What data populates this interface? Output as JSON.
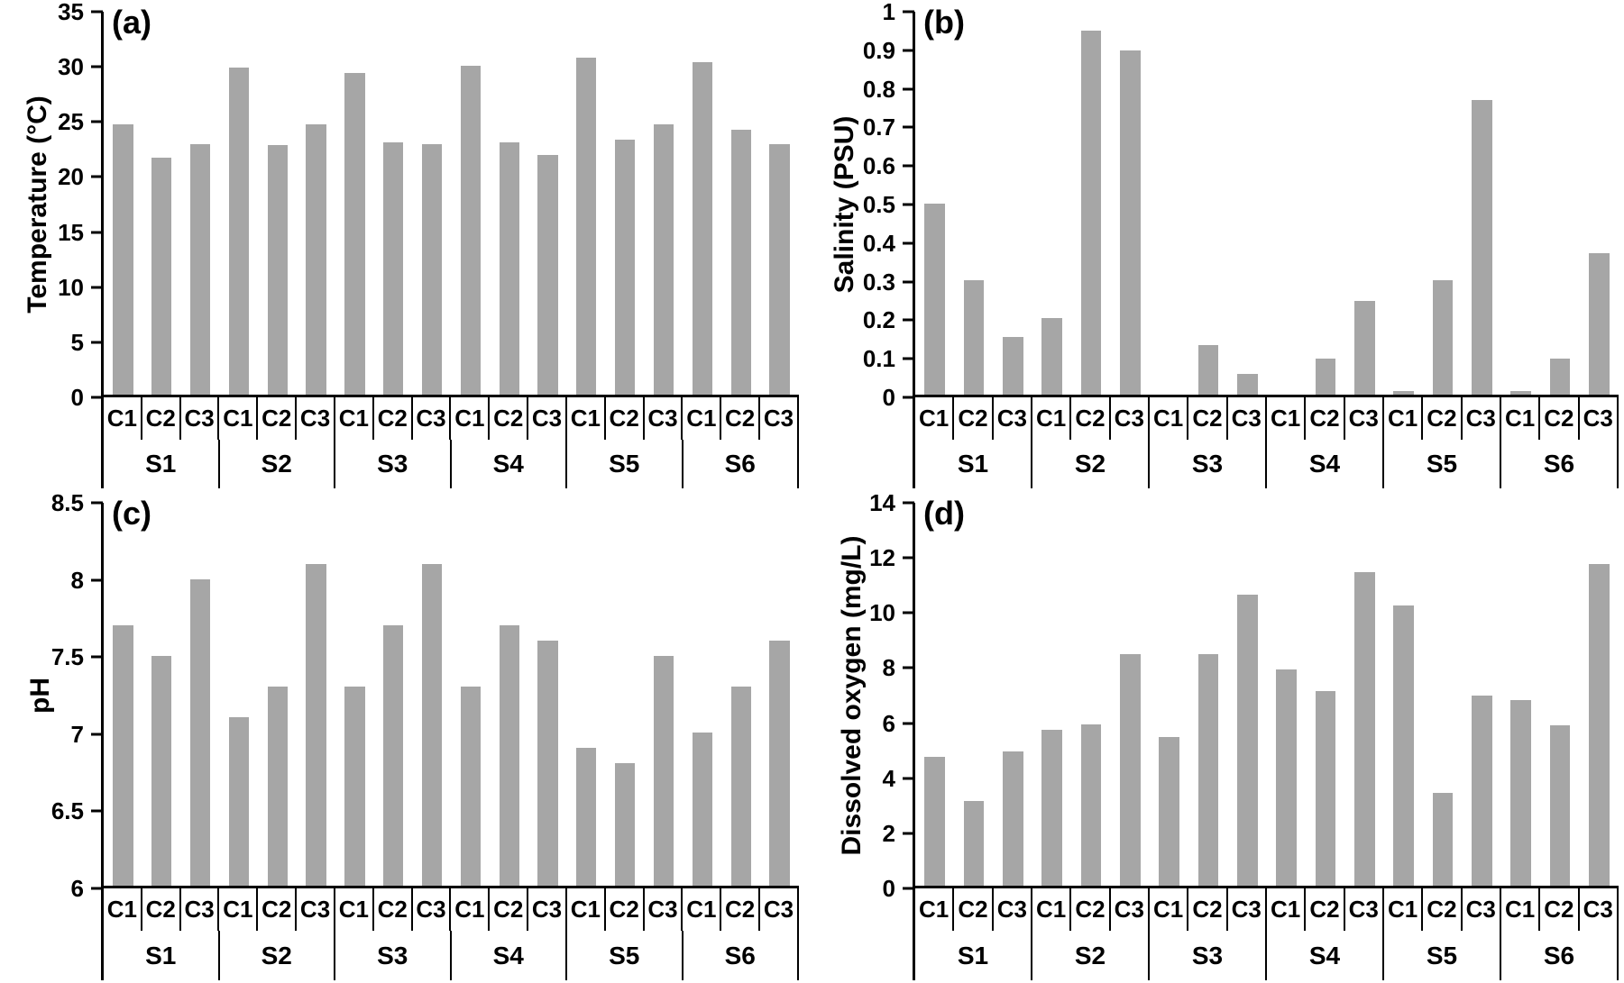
{
  "bar_color": "#a6a6a6",
  "axis_color": "#000000",
  "group_labels": [
    "S1",
    "S2",
    "S3",
    "S4",
    "S5",
    "S6"
  ],
  "replicate_labels": [
    "C1",
    "C2",
    "C3"
  ],
  "chart_data": [
    {
      "type": "bar",
      "panel_label": "(a)",
      "title": "",
      "xlabel": "",
      "ylabel": "Temperature (°C)",
      "ylim": [
        0,
        35
      ],
      "ytick_values": [
        35,
        30,
        25,
        20,
        15,
        10,
        5,
        0
      ],
      "ytick_labels": [
        "35",
        "30",
        "25",
        "20",
        "15",
        "10",
        "5",
        "0"
      ],
      "grid": false,
      "legend": "none",
      "groups": [
        "S1",
        "S2",
        "S3",
        "S4",
        "S5",
        "S6"
      ],
      "subcategories": [
        "C1",
        "C2",
        "C3"
      ],
      "categories": [
        "S1-C1",
        "S1-C2",
        "S1-C3",
        "S2-C1",
        "S2-C2",
        "S2-C3",
        "S3-C1",
        "S3-C2",
        "S3-C3",
        "S4-C1",
        "S4-C2",
        "S4-C3",
        "S5-C1",
        "S5-C2",
        "S5-C3",
        "S6-C1",
        "S6-C2",
        "S6-C3"
      ],
      "values": [
        24.7,
        21.7,
        22.9,
        29.9,
        22.8,
        24.7,
        29.4,
        23.1,
        22.9,
        30.1,
        23.1,
        21.9,
        30.8,
        23.3,
        24.7,
        30.4,
        24.2,
        22.9
      ]
    },
    {
      "type": "bar",
      "panel_label": "(b)",
      "title": "",
      "xlabel": "",
      "ylabel": "Salinity (PSU)",
      "ylim": [
        0,
        1
      ],
      "ytick_values": [
        1,
        0.9,
        0.8,
        0.7,
        0.6,
        0.5,
        0.4,
        0.3,
        0.2,
        0.1,
        0
      ],
      "ytick_labels": [
        "1",
        "0.9",
        "0.8",
        "0.7",
        "0.6",
        "0.5",
        "0.4",
        "0.3",
        "0.2",
        "0.1",
        "0"
      ],
      "grid": false,
      "legend": "none",
      "groups": [
        "S1",
        "S2",
        "S3",
        "S4",
        "S5",
        "S6"
      ],
      "subcategories": [
        "C1",
        "C2",
        "C3"
      ],
      "categories": [
        "S1-C1",
        "S1-C2",
        "S1-C3",
        "S2-C1",
        "S2-C2",
        "S2-C3",
        "S3-C1",
        "S3-C2",
        "S3-C3",
        "S4-C1",
        "S4-C2",
        "S4-C3",
        "S5-C1",
        "S5-C2",
        "S5-C3",
        "S6-C1",
        "S6-C2",
        "S6-C3"
      ],
      "values": [
        0.5,
        0.3,
        0.15,
        0.2,
        0.95,
        0.9,
        0,
        0.13,
        0.055,
        0,
        0.095,
        0.245,
        0.01,
        0.3,
        0.77,
        0.01,
        0.095,
        0.37
      ]
    },
    {
      "type": "bar",
      "panel_label": "(c)",
      "title": "",
      "xlabel": "",
      "ylabel": "pH",
      "ylim": [
        6,
        8.5
      ],
      "ytick_values": [
        8.5,
        8,
        7.5,
        7,
        6.5,
        6
      ],
      "ytick_labels": [
        "8.5",
        "8",
        "7.5",
        "7",
        "6.5",
        "6"
      ],
      "grid": false,
      "legend": "none",
      "groups": [
        "S1",
        "S2",
        "S3",
        "S4",
        "S5",
        "S6"
      ],
      "subcategories": [
        "C1",
        "C2",
        "C3"
      ],
      "categories": [
        "S1-C1",
        "S1-C2",
        "S1-C3",
        "S2-C1",
        "S2-C2",
        "S2-C3",
        "S3-C1",
        "S3-C2",
        "S3-C3",
        "S4-C1",
        "S4-C2",
        "S4-C3",
        "S5-C1",
        "S5-C2",
        "S5-C3",
        "S6-C1",
        "S6-C2",
        "S6-C3"
      ],
      "values": [
        7.7,
        7.5,
        8.0,
        7.1,
        7.3,
        8.1,
        7.3,
        7.7,
        8.1,
        7.3,
        7.7,
        7.6,
        6.9,
        6.8,
        7.5,
        7.0,
        7.3,
        7.6
      ]
    },
    {
      "type": "bar",
      "panel_label": "(d)",
      "title": "",
      "xlabel": "",
      "ylabel": "Dissolved oxygen (mg/L)",
      "ylim": [
        0,
        14
      ],
      "ytick_values": [
        14,
        12,
        10,
        8,
        6,
        4,
        2,
        0
      ],
      "ytick_labels": [
        "14",
        "12",
        "10",
        "8",
        "6",
        "4",
        "2",
        "0"
      ],
      "grid": false,
      "legend": "none",
      "groups": [
        "S1",
        "S2",
        "S3",
        "S4",
        "S5",
        "S6"
      ],
      "subcategories": [
        "C1",
        "C2",
        "C3"
      ],
      "categories": [
        "S1-C1",
        "S1-C2",
        "S1-C3",
        "S2-C1",
        "S2-C2",
        "S2-C3",
        "S3-C1",
        "S3-C2",
        "S3-C3",
        "S4-C1",
        "S4-C2",
        "S4-C3",
        "S5-C1",
        "S5-C2",
        "S5-C3",
        "S6-C1",
        "S6-C2",
        "S6-C3"
      ],
      "values": [
        4.7,
        3.1,
        4.9,
        5.7,
        5.9,
        8.45,
        5.45,
        8.45,
        10.65,
        7.9,
        7.1,
        11.45,
        10.25,
        3.4,
        6.95,
        6.8,
        5.85,
        11.75
      ]
    }
  ]
}
